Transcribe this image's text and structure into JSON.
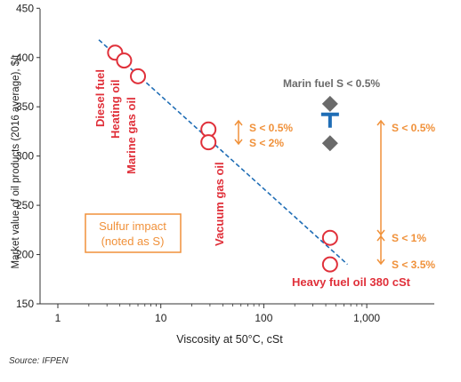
{
  "chart_data": {
    "type": "scatter",
    "xlabel": "Viscosity at 50°C, cSt",
    "ylabel": "Market value of oil products (2016 average), $/t",
    "x_scale": "log",
    "xlim": [
      1,
      1500
    ],
    "ylim": [
      150,
      460
    ],
    "x_ticks": [
      {
        "value": 1,
        "label": "1"
      },
      {
        "value": 10,
        "label": "10"
      },
      {
        "value": 100,
        "label": "100"
      },
      {
        "value": 1000,
        "label": "1,000"
      }
    ],
    "y_ticks": [
      150,
      200,
      250,
      300,
      350,
      400,
      450
    ],
    "grid": false,
    "points": [
      {
        "name": "Diesel fuel",
        "x": 3.6,
        "y": 405
      },
      {
        "name": "Heating oil",
        "x": 4.4,
        "y": 397
      },
      {
        "name": "Marine gas oil",
        "x": 6,
        "y": 381
      },
      {
        "name": "Vacuum gas oil",
        "x": 29,
        "y": 327
      },
      {
        "name": "Vacuum gas oil",
        "x": 29,
        "y": 314
      },
      {
        "name": "Heavy fuel oil 380 cSt",
        "x": 440,
        "y": 217
      },
      {
        "name": "Heavy fuel oil 380 cSt",
        "x": 440,
        "y": 190
      }
    ],
    "trendline": {
      "x": [
        2.5,
        650
      ],
      "y": [
        418,
        190
      ],
      "style": "dashed"
    },
    "marine_fuel": {
      "label": "Marin fuel S < 0.5%",
      "x": 440,
      "y_high": 353,
      "y_low": 313,
      "y_mid": 336
    },
    "sulfur_labels": {
      "vgo_low": "S < 0.5%",
      "vgo_high": "S < 2%",
      "hfo_mid": "S < 0.5%",
      "hfo_1": "S < 1%",
      "hfo_35": "S < 3.5%"
    },
    "product_labels": {
      "diesel": "Diesel fuel",
      "heating": "Heating oil",
      "marine": "Marine gas oil",
      "vgo": "Vacuum gas oil",
      "hfo": "Heavy fuel oil 380 cSt"
    },
    "legend_box": {
      "line1": "Sulfur impact",
      "line2": "(noted as S)"
    }
  },
  "source": "Source: IFPEN",
  "colors": {
    "red": "#e0303a",
    "orange": "#f0913a",
    "blue": "#1f6db5",
    "gray": "#6a6a6a"
  }
}
